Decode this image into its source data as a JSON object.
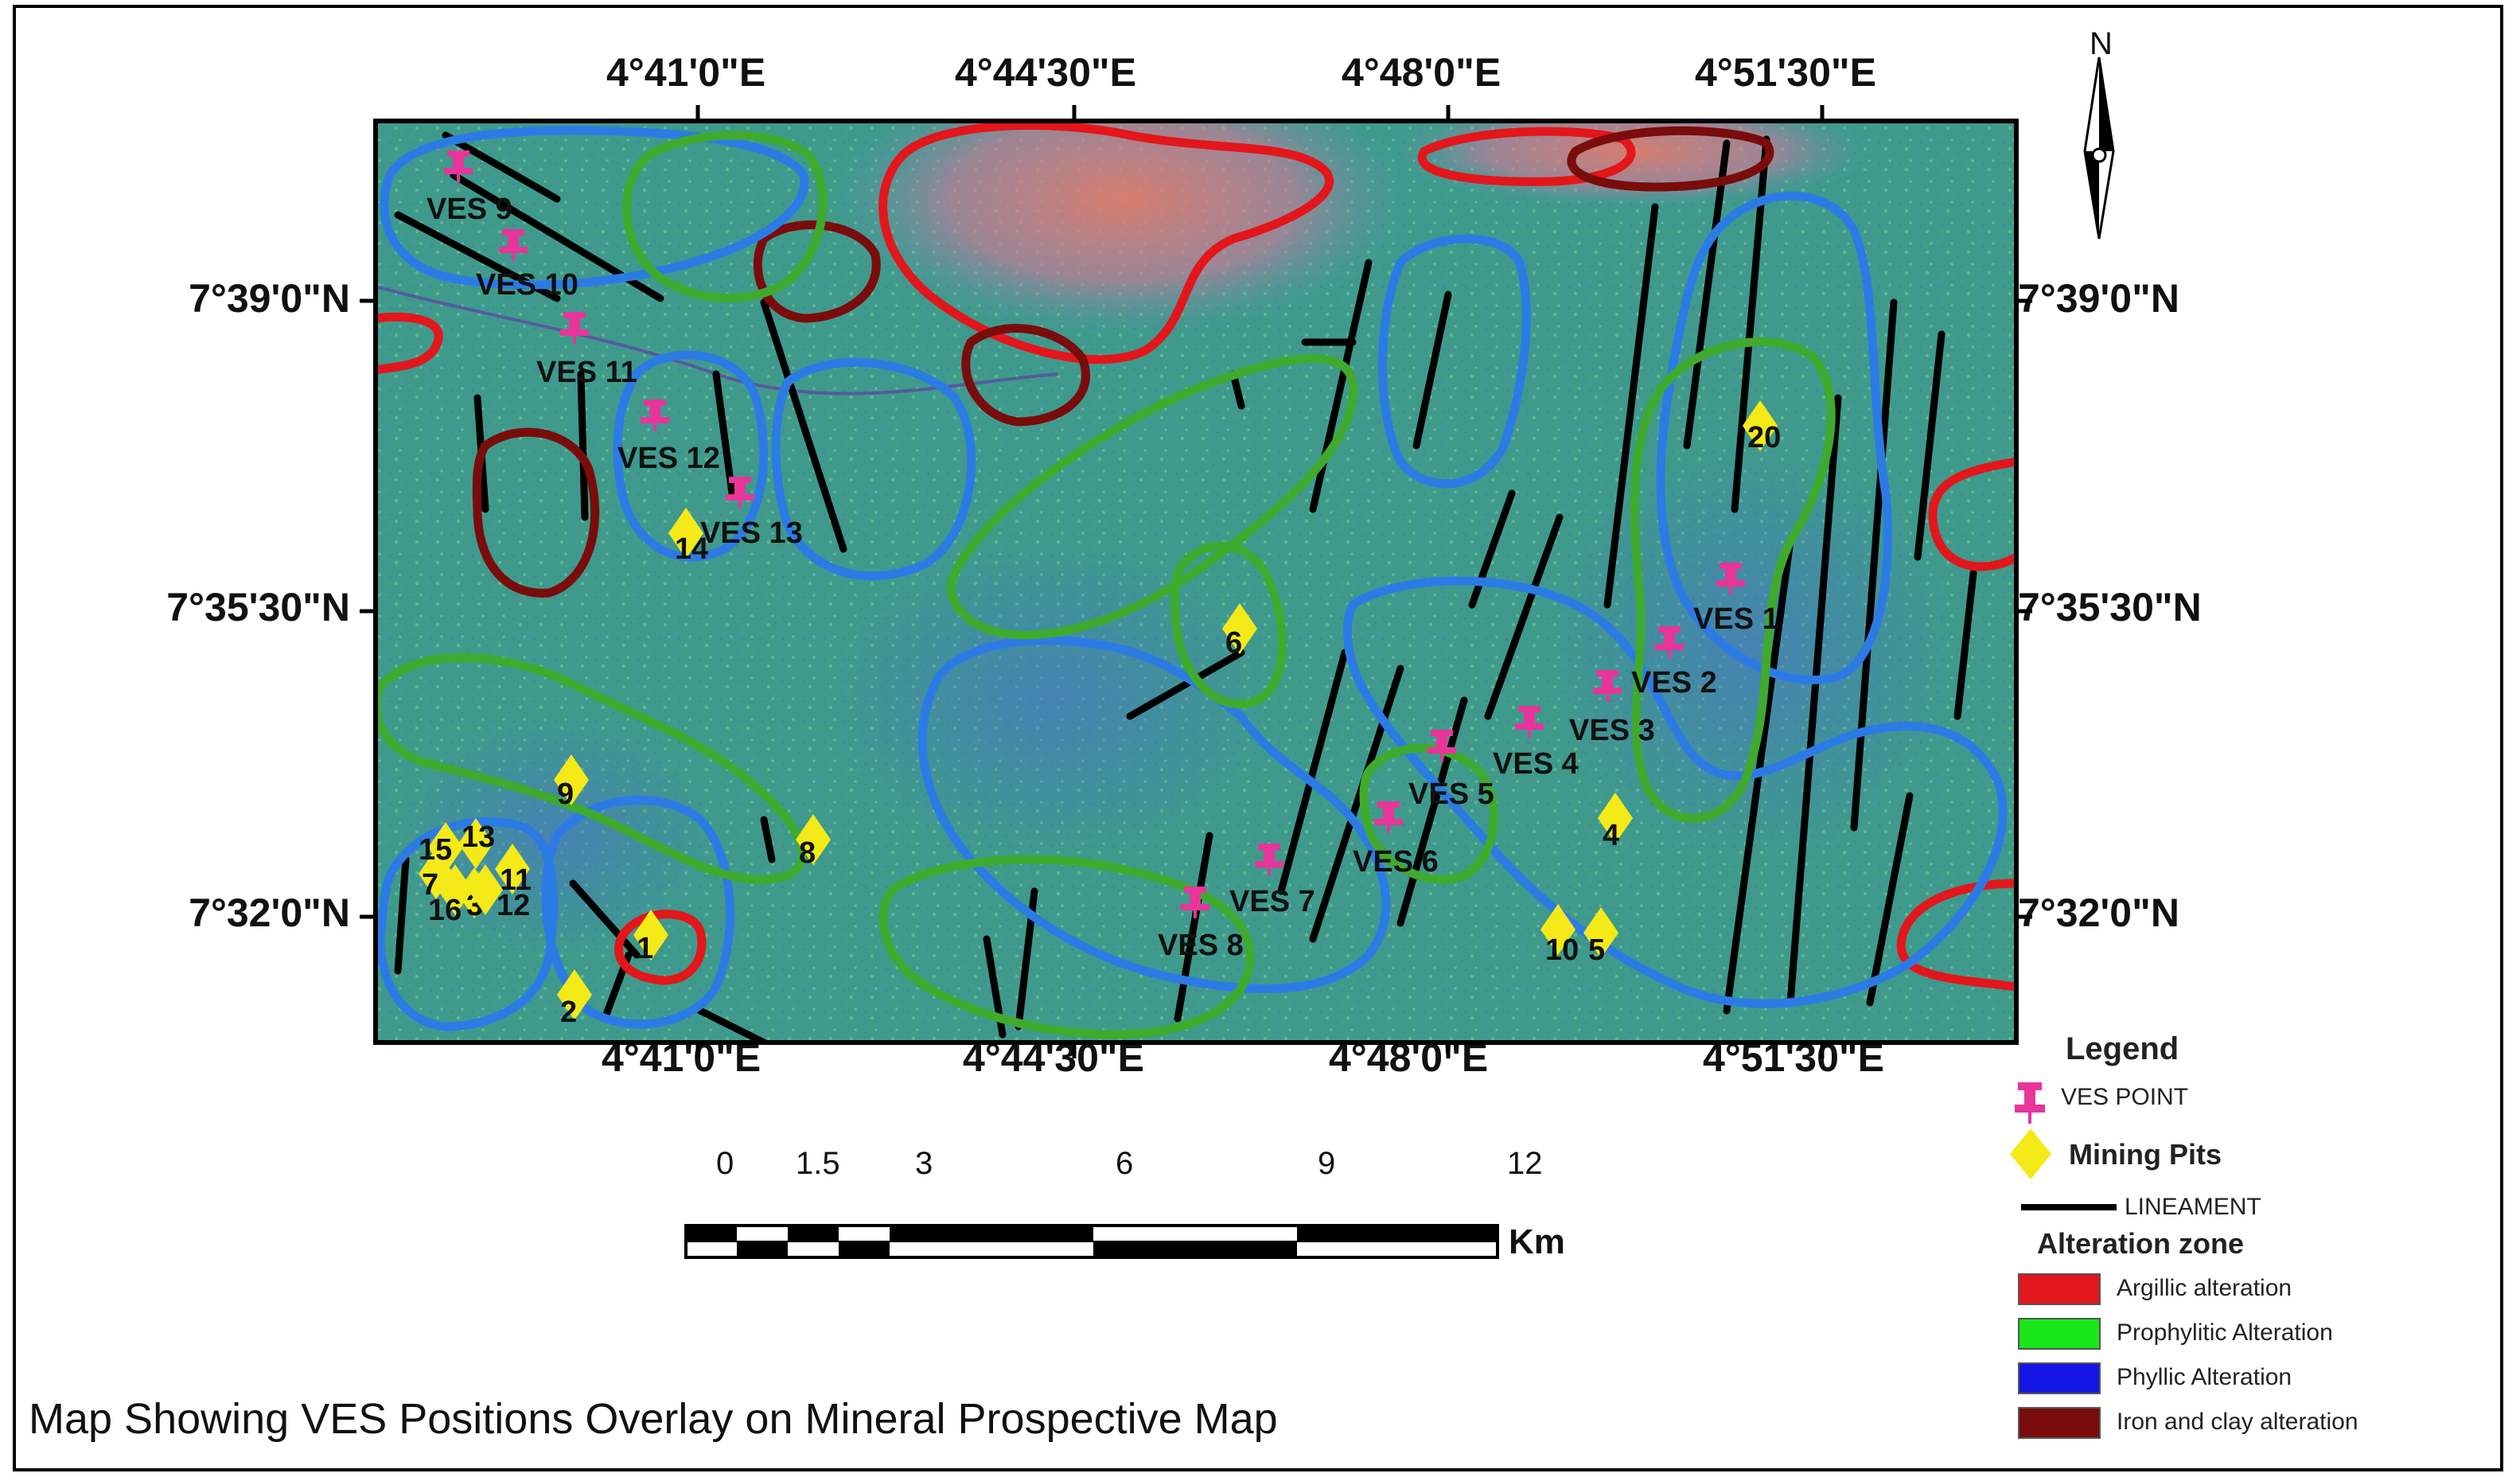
{
  "map": {
    "top_longitude_labels": [
      "4°41'0\"E",
      "4°44'30\"E",
      "4°48'0\"E",
      "4°51'30\"E"
    ],
    "bottom_longitude_labels": [
      "4°41'0\"E",
      "4°44'30\"E",
      "4°48'0\"E",
      "4°51'30\"E"
    ],
    "left_latitude_labels": [
      "7°39'0\"N",
      "7°35'30\"N",
      "7°32'0\"N"
    ],
    "right_latitude_labels": [
      "7°39'0\"N",
      "7°35'30\"N",
      "7°32'0\"N"
    ],
    "north_label": "N",
    "ves_points": [
      "VES 1",
      "VES 2",
      "VES 3",
      "VES 4",
      "VES 5",
      "VES 6",
      "VES 7",
      "VES 8",
      "VES 9",
      "VES 10",
      "VES 11",
      "VES 12",
      "VES 13"
    ],
    "mining_pits": [
      "1",
      "2",
      "3",
      "4",
      "5",
      "6",
      "7",
      "8",
      "9",
      "10",
      "11",
      "12",
      "13",
      "14",
      "15",
      "16",
      "20"
    ],
    "colors": {
      "argillic": "#e3161b",
      "prophylitic": "#3faa2e",
      "phyllic": "#2c7be5",
      "iron_clay": "#7a0c0c",
      "ves_point": "#e8359a",
      "mining_pit": "#f4ea18",
      "lineament": "#000000"
    }
  },
  "scale_bar": {
    "ticks": [
      "0",
      "1.5",
      "3",
      "6",
      "9",
      "12"
    ],
    "unit": "Km"
  },
  "legend": {
    "title": "Legend",
    "ves_point": "VES POINT",
    "mining_pits": "Mining Pits",
    "lineament": "LINEAMENT",
    "alteration_title": "Alteration zone",
    "zones": [
      "Argillic alteration",
      "Prophylitic Alteration",
      "Phyllic Alteration",
      "Iron and clay alteration"
    ]
  },
  "caption": "Map Showing VES Positions Overlay on Mineral Prospective Map"
}
